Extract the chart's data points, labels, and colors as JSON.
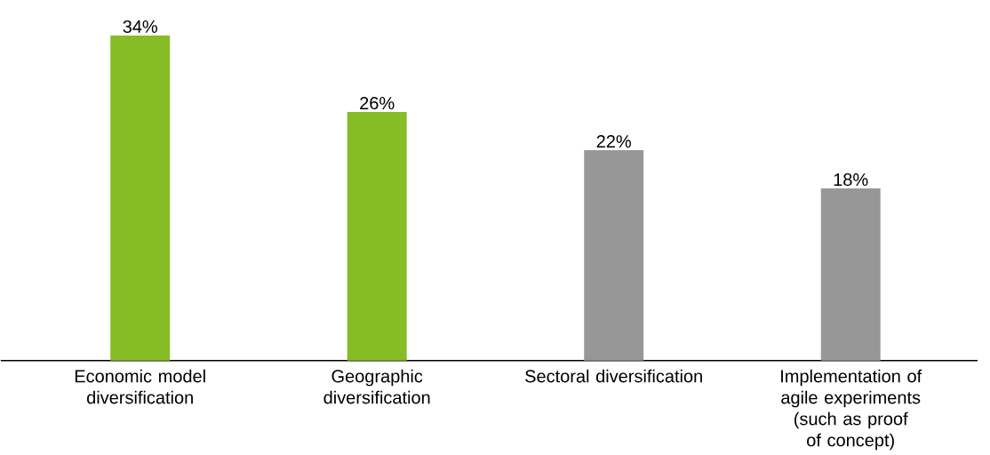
{
  "chart_data": {
    "type": "bar",
    "categories": [
      "Economic model diversification",
      "Geographic diversification",
      "Sectoral diversification",
      "Implementation of agile experiments (such as proof of concept)"
    ],
    "values": [
      34,
      26,
      22,
      18
    ],
    "colors": [
      "#86bc25",
      "#86bc25",
      "#979797",
      "#979797"
    ],
    "value_labels": [
      "34%",
      "26%",
      "22%",
      "18%"
    ],
    "grid": false
  }
}
